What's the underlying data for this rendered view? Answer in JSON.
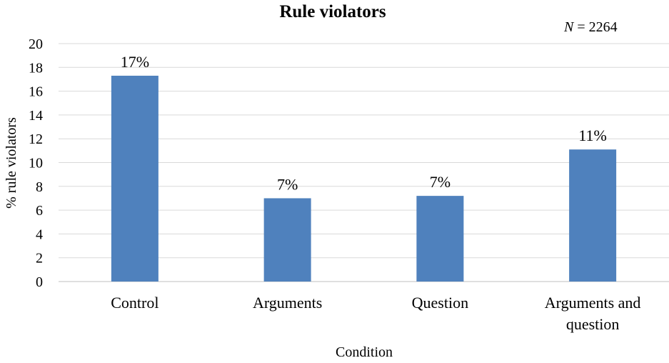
{
  "chart_data": {
    "type": "bar",
    "title": "Rule violators",
    "annotation": {
      "italic": "N",
      "rest": " = 2264"
    },
    "xlabel": "Condition",
    "ylabel": "% rule violators",
    "ylim": [
      0,
      20
    ],
    "yticks": [
      "0",
      "2",
      "4",
      "6",
      "8",
      "10",
      "12",
      "14",
      "16",
      "18",
      "20"
    ],
    "grid": true,
    "categories": [
      [
        "Control"
      ],
      [
        "Arguments"
      ],
      [
        "Question"
      ],
      [
        "Arguments and",
        "question"
      ]
    ],
    "values": [
      17.3,
      7.0,
      7.2,
      11.1
    ],
    "data_labels": [
      "17%",
      "7%",
      "7%",
      "11%"
    ],
    "bar_color": "#4f81bd"
  }
}
